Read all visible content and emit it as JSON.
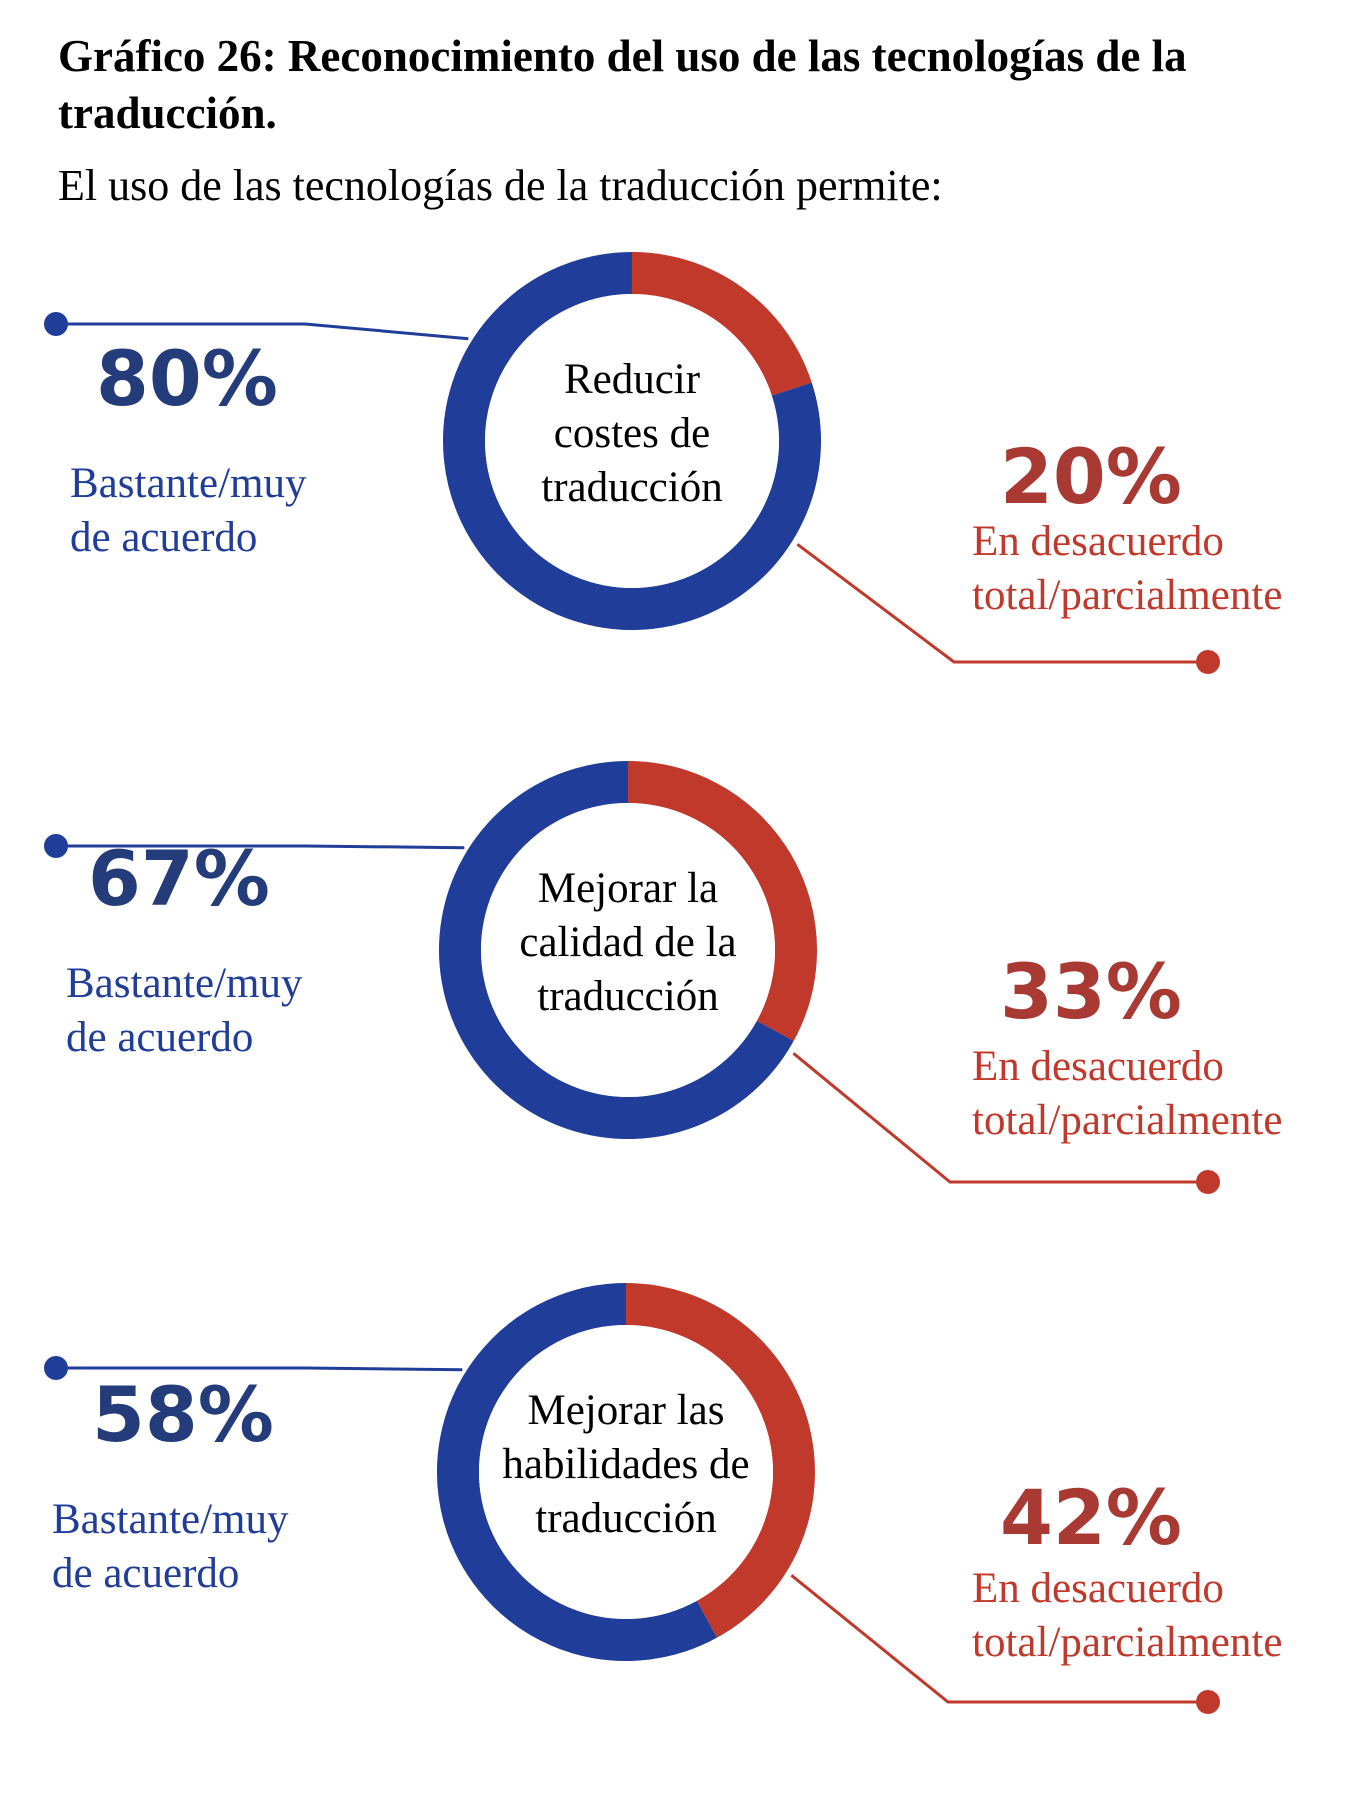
{
  "title": "Gráfico 26: Reconocimiento del uso de las tecnologías de la traducción.",
  "subtitle": "El uso de las tecnologías de la traducción permite:",
  "colors": {
    "agree": "#1f3d99",
    "disagree": "#c0392b"
  },
  "chart_data": {
    "type": "pie",
    "charts": [
      {
        "center_label": [
          "Reducir",
          "costes de",
          "traducción"
        ],
        "slices": [
          {
            "label_lines": [
              "Bastante/muy",
              "de acuerdo"
            ],
            "value": 80,
            "value_label": "80%"
          },
          {
            "label_lines": [
              "En desacuerdo",
              "total/parcialmente"
            ],
            "value": 20,
            "value_label": "20%"
          }
        ]
      },
      {
        "center_label": [
          "Mejorar la",
          "calidad de la",
          "traducción"
        ],
        "slices": [
          {
            "label_lines": [
              "Bastante/muy",
              "de acuerdo"
            ],
            "value": 67,
            "value_label": "67%"
          },
          {
            "label_lines": [
              "En desacuerdo",
              "total/parcialmente"
            ],
            "value": 33,
            "value_label": "33%"
          }
        ]
      },
      {
        "center_label": [
          "Mejorar las",
          "habilidades de",
          "traducción"
        ],
        "slices": [
          {
            "label_lines": [
              "Bastante/muy",
              "de acuerdo"
            ],
            "value": 58,
            "value_label": "58%"
          },
          {
            "label_lines": [
              "En desacuerdo",
              "total/parcialmente"
            ],
            "value": 42,
            "value_label": "42%"
          }
        ]
      }
    ]
  }
}
